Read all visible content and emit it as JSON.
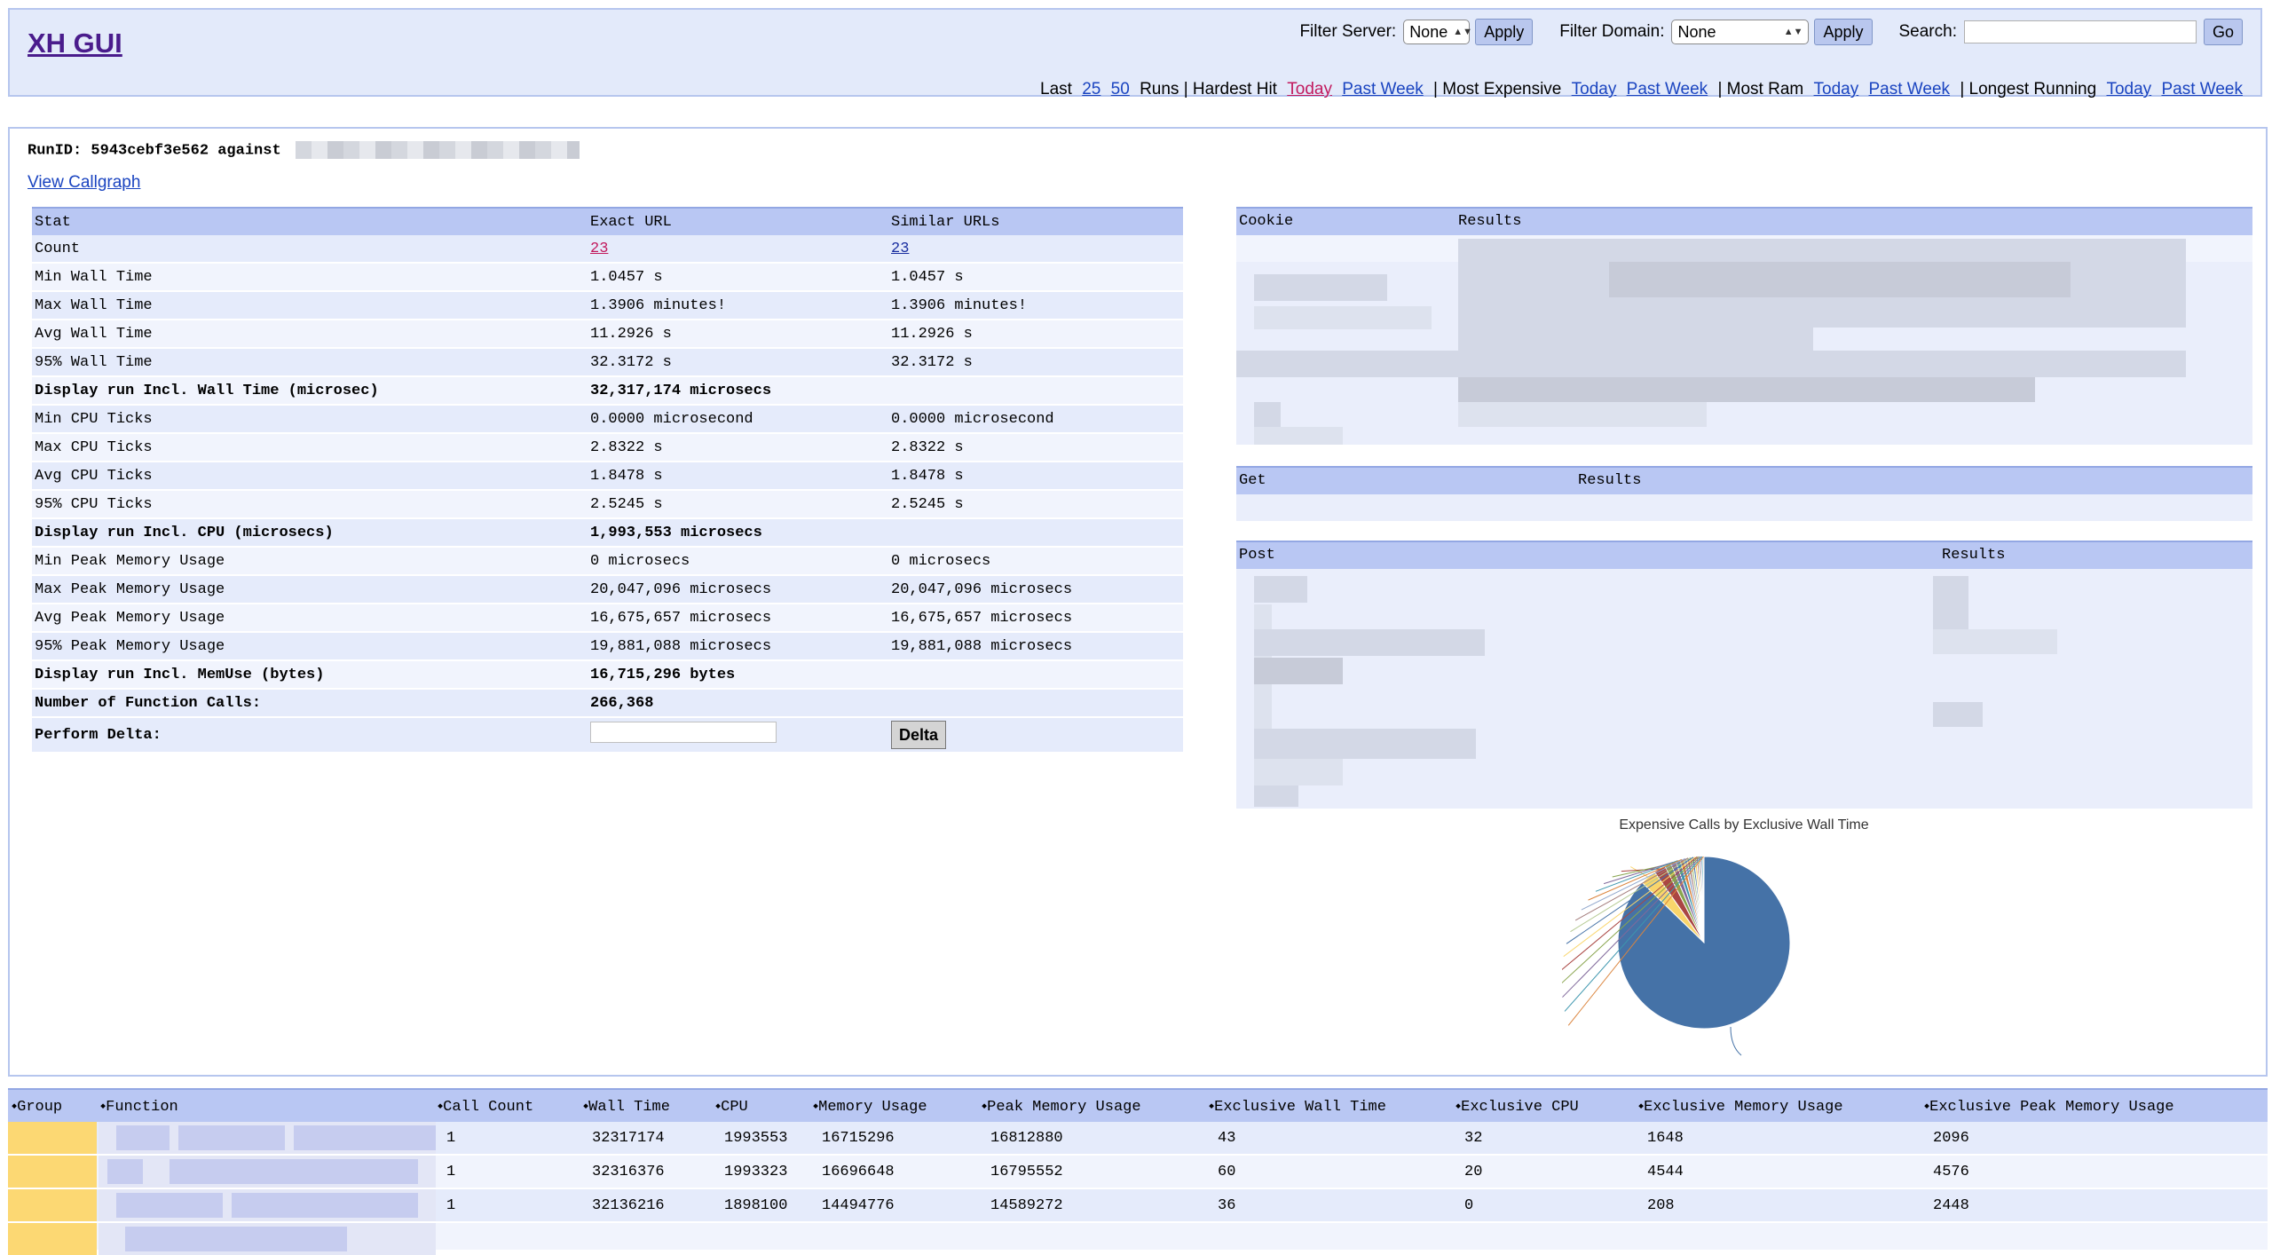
{
  "header": {
    "logo": "XH GUI",
    "filter_server_label": "Filter Server:",
    "filter_server_value": "None",
    "filter_domain_label": "Filter Domain:",
    "filter_domain_value": "None",
    "apply_label": "Apply",
    "search_label": "Search:",
    "go_label": "Go",
    "nav": {
      "last": "Last",
      "n25": "25",
      "n50": "50",
      "runs": "Runs | Hardest Hit",
      "today": "Today",
      "past_week": "Past Week",
      "most_expensive": "| Most Expensive",
      "most_ram": "| Most Ram",
      "longest_running": "| Longest Running"
    }
  },
  "main": {
    "runid_label": "RunID: 5943cebf3e562 against",
    "view_callgraph": "View Callgraph",
    "stats": {
      "headers": [
        "Stat",
        "Exact URL",
        "Similar URLs"
      ],
      "rows": [
        {
          "stat": "Count",
          "exact": "23",
          "similar": "23"
        },
        {
          "stat": "Min Wall Time",
          "exact": "1.0457 s",
          "similar": "1.0457 s"
        },
        {
          "stat": "Max Wall Time",
          "exact": "1.3906 minutes!",
          "similar": "1.3906 minutes!"
        },
        {
          "stat": "Avg Wall Time",
          "exact": "11.2926 s",
          "similar": "11.2926 s"
        },
        {
          "stat": "95% Wall Time",
          "exact": "32.3172 s",
          "similar": "32.3172 s"
        },
        {
          "stat": "Display run Incl. Wall Time (microsec)",
          "exact": "32,317,174 microsecs",
          "similar": ""
        },
        {
          "stat": "Min CPU Ticks",
          "exact": "0.0000 microsecond",
          "similar": "0.0000 microsecond"
        },
        {
          "stat": "Max CPU Ticks",
          "exact": "2.8322 s",
          "similar": "2.8322 s"
        },
        {
          "stat": "Avg CPU Ticks",
          "exact": "1.8478 s",
          "similar": "1.8478 s"
        },
        {
          "stat": "95% CPU Ticks",
          "exact": "2.5245 s",
          "similar": "2.5245 s"
        },
        {
          "stat": "Display run Incl. CPU (microsecs)",
          "exact": "1,993,553 microsecs",
          "similar": ""
        },
        {
          "stat": "Min Peak Memory Usage",
          "exact": "0 microsecs",
          "similar": "0 microsecs"
        },
        {
          "stat": "Max Peak Memory Usage",
          "exact": "20,047,096 microsecs",
          "similar": "20,047,096 microsecs"
        },
        {
          "stat": "Avg Peak Memory Usage",
          "exact": "16,675,657 microsecs",
          "similar": "16,675,657 microsecs"
        },
        {
          "stat": "95% Peak Memory Usage",
          "exact": "19,881,088 microsecs",
          "similar": "19,881,088 microsecs"
        },
        {
          "stat": "Display run Incl. MemUse (bytes)",
          "exact": "16,715,296 bytes",
          "similar": ""
        },
        {
          "stat": "Number of Function Calls:",
          "exact": "266,368",
          "similar": ""
        }
      ],
      "delta_label": "Perform Delta:",
      "delta_button": "Delta"
    },
    "cookie_table": {
      "col1": "Cookie",
      "col2": "Results"
    },
    "get_table": {
      "col1": "Get",
      "col2": "Results"
    },
    "post_table": {
      "col1": "Post",
      "col2": "Results"
    },
    "pie": {
      "title": "Expensive Calls by Exclusive Wall Time",
      "colors": [
        "#4572a7",
        "#f9d56b",
        "#aa4643",
        "#89a54e",
        "#80699b",
        "#3d96ae",
        "#db843d",
        "#92a8cd",
        "#a47d7c",
        "#b5ca92"
      ]
    }
  },
  "chart_data": {
    "type": "pie",
    "title": "Expensive Calls by Exclusive Wall Time",
    "values": [
      87,
      3,
      2.2,
      1.2,
      1,
      0.8,
      0.7,
      0.6,
      0.5,
      0.5,
      0.4,
      0.4,
      0.3,
      0.3,
      0.3,
      0.3,
      0.2
    ]
  },
  "functions": {
    "headers": [
      "Group",
      "Function",
      "Call Count",
      "Wall Time",
      "CPU",
      "Memory Usage",
      "Peak Memory Usage",
      "Exclusive Wall Time",
      "Exclusive CPU",
      "Exclusive Memory Usage",
      "Exclusive Peak Memory Usage"
    ],
    "rows": [
      {
        "calls": "1",
        "wall": "32317174",
        "cpu": "1993553",
        "mem": "16715296",
        "peak": "16812880",
        "ewall": "43",
        "ecpu": "32",
        "emem": "1648",
        "epeak": "2096"
      },
      {
        "calls": "1",
        "wall": "32316376",
        "cpu": "1993323",
        "mem": "16696648",
        "peak": "16795552",
        "ewall": "60",
        "ecpu": "20",
        "emem": "4544",
        "epeak": "4576"
      },
      {
        "calls": "1",
        "wall": "32136216",
        "cpu": "1898100",
        "mem": "14494776",
        "peak": "14589272",
        "ewall": "36",
        "ecpu": "0",
        "emem": "208",
        "epeak": "2448"
      }
    ]
  }
}
